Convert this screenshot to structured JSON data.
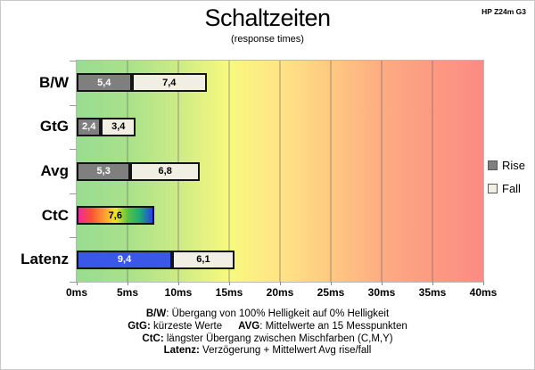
{
  "header": {
    "title": "Schaltzeiten",
    "subtitle": "(response times)",
    "device": "HP Z24m G3"
  },
  "legend": {
    "rise_label": "Rise",
    "fall_label": "Fall"
  },
  "colors": {
    "rise": "#7f7f7f",
    "fall": "#f1efe4",
    "latency_rise": "#3a57e8",
    "bar_border": "#141414",
    "gradient": [
      "#98dc92",
      "#a9e18b",
      "#cdeb86",
      "#f8f97e",
      "#ffe486",
      "#fec981",
      "#fdac82",
      "#fc9a82",
      "#fb8b84"
    ],
    "ctc_gradient": [
      "#f2299b",
      "#fa4f35",
      "#fc9630",
      "#efe62a",
      "#57c243",
      "#1fa97a",
      "#2b3fe3"
    ]
  },
  "chart_data": {
    "type": "bar",
    "orientation": "horizontal",
    "stacked": true,
    "grid": true,
    "legend_position": "right",
    "title": "Schaltzeiten",
    "subtitle": "(response times)",
    "xlim": [
      0,
      40
    ],
    "x_unit": "ms",
    "x_ticks": [
      "0ms",
      "5ms",
      "10ms",
      "15ms",
      "20ms",
      "25ms",
      "30ms",
      "35ms",
      "40ms"
    ],
    "categories": [
      "B/W",
      "GtG",
      "Avg",
      "CtC",
      "Latenz"
    ],
    "series": [
      {
        "name": "Rise",
        "values": [
          5.4,
          2.4,
          5.3,
          7.6,
          9.4
        ]
      },
      {
        "name": "Fall",
        "values": [
          7.4,
          3.4,
          6.8,
          null,
          6.1
        ]
      }
    ],
    "rows": [
      {
        "label": "B/W",
        "rise_ms": 5.4,
        "rise_label": "5,4",
        "fall_ms": 7.4,
        "fall_label": "7,4",
        "rise_style": "gray"
      },
      {
        "label": "GtG",
        "rise_ms": 2.4,
        "rise_label": "2,4",
        "fall_ms": 3.4,
        "fall_label": "3,4",
        "rise_style": "gray"
      },
      {
        "label": "Avg",
        "rise_ms": 5.3,
        "rise_label": "5,3",
        "fall_ms": 6.8,
        "fall_label": "6,8",
        "rise_style": "gray"
      },
      {
        "label": "CtC",
        "rise_ms": 7.6,
        "rise_label": "7,6",
        "fall_ms": null,
        "fall_label": null,
        "rise_style": "rainbow"
      },
      {
        "label": "Latenz",
        "rise_ms": 9.4,
        "rise_label": "9,4",
        "fall_ms": 6.1,
        "fall_label": "6,1",
        "rise_style": "blue"
      }
    ]
  },
  "footnotes": [
    {
      "segments": [
        {
          "text": "B/W",
          "bold": true
        },
        {
          "text": ":  Übergang von 100% Helligkeit auf 0% Helligkeit",
          "bold": false
        }
      ]
    },
    {
      "segments": [
        {
          "text": "GtG:",
          "bold": true
        },
        {
          "text": " kürzeste Werte",
          "bold": false
        },
        {
          "text": "AVG",
          "bold": true,
          "gap": true
        },
        {
          "text": ": Mittelwerte an 15 Messpunkten",
          "bold": false
        }
      ]
    },
    {
      "segments": [
        {
          "text": "CtC:",
          "bold": true
        },
        {
          "text": " längster Übergang zwischen Mischfarben (C,M,Y)",
          "bold": false
        }
      ]
    },
    {
      "segments": [
        {
          "text": "Latenz:",
          "bold": true
        },
        {
          "text": " Verzögerung + Mittelwert Avg rise/fall",
          "bold": false
        }
      ]
    }
  ]
}
